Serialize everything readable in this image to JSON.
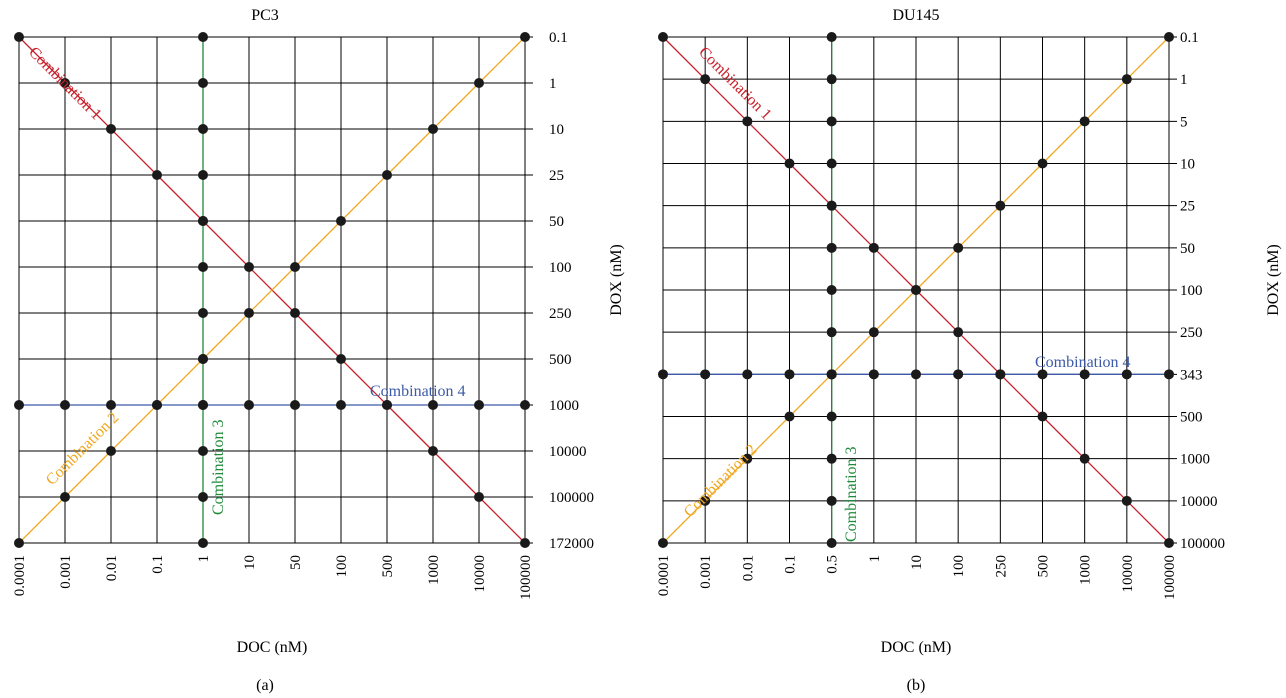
{
  "colors": {
    "grid": "#000000",
    "point": "#1a1a1a",
    "combination_1": "#c8202a",
    "combination_2": "#f0a820",
    "combination_3": "#1e8a3a",
    "combination_4": "#3d5aa8"
  },
  "chart_data": [
    {
      "type": "scatter",
      "title": "PC3",
      "panel_label": "(a)",
      "xlabel": "DOC (nM)",
      "ylabel": "DOX (nM)",
      "x_categories": [
        "0.0001",
        "0.001",
        "0.01",
        "0.1",
        "1",
        "10",
        "50",
        "100",
        "500",
        "1000",
        "10000",
        "100000"
      ],
      "y_categories": [
        "0.1",
        "1",
        "10",
        "25",
        "50",
        "100",
        "250",
        "500",
        "1000",
        "10000",
        "100000",
        "172000"
      ],
      "grid": true,
      "series": [
        {
          "name": "Combination 1",
          "points": [
            [
              "0.0001",
              "0.1"
            ],
            [
              "0.001",
              "1"
            ],
            [
              "0.01",
              "10"
            ],
            [
              "0.1",
              "25"
            ],
            [
              "1",
              "50"
            ],
            [
              "10",
              "100"
            ],
            [
              "50",
              "250"
            ],
            [
              "100",
              "500"
            ],
            [
              "500",
              "1000"
            ],
            [
              "1000",
              "10000"
            ],
            [
              "10000",
              "100000"
            ],
            [
              "100000",
              "172000"
            ]
          ]
        },
        {
          "name": "Combination 2",
          "points": [
            [
              "0.0001",
              "172000"
            ],
            [
              "0.001",
              "100000"
            ],
            [
              "0.01",
              "10000"
            ],
            [
              "0.1",
              "1000"
            ],
            [
              "1",
              "500"
            ],
            [
              "10",
              "250"
            ],
            [
              "50",
              "100"
            ],
            [
              "100",
              "50"
            ],
            [
              "500",
              "25"
            ],
            [
              "1000",
              "10"
            ],
            [
              "10000",
              "1"
            ],
            [
              "100000",
              "0.1"
            ]
          ]
        },
        {
          "name": "Combination 3",
          "points": [
            [
              "1",
              "0.1"
            ],
            [
              "1",
              "1"
            ],
            [
              "1",
              "10"
            ],
            [
              "1",
              "25"
            ],
            [
              "1",
              "50"
            ],
            [
              "1",
              "100"
            ],
            [
              "1",
              "250"
            ],
            [
              "1",
              "500"
            ],
            [
              "1",
              "1000"
            ],
            [
              "1",
              "10000"
            ],
            [
              "1",
              "100000"
            ],
            [
              "1",
              "172000"
            ]
          ]
        },
        {
          "name": "Combination 4",
          "points": [
            [
              "0.0001",
              "1000"
            ],
            [
              "0.001",
              "1000"
            ],
            [
              "0.01",
              "1000"
            ],
            [
              "0.1",
              "1000"
            ],
            [
              "1",
              "1000"
            ],
            [
              "10",
              "1000"
            ],
            [
              "50",
              "1000"
            ],
            [
              "100",
              "1000"
            ],
            [
              "500",
              "1000"
            ],
            [
              "1000",
              "1000"
            ],
            [
              "10000",
              "1000"
            ],
            [
              "100000",
              "1000"
            ]
          ]
        }
      ]
    },
    {
      "type": "scatter",
      "title": "DU145",
      "panel_label": "(b)",
      "xlabel": "DOC (nM)",
      "ylabel": "DOX (nM)",
      "x_categories": [
        "0.0001",
        "0.001",
        "0.01",
        "0.1",
        "0.5",
        "1",
        "10",
        "100",
        "250",
        "500",
        "1000",
        "10000",
        "100000"
      ],
      "y_categories": [
        "0.1",
        "1",
        "5",
        "10",
        "25",
        "50",
        "100",
        "250",
        "343",
        "500",
        "1000",
        "10000",
        "100000"
      ],
      "grid": true,
      "series": [
        {
          "name": "Combination 1",
          "points": [
            [
              "0.0001",
              "0.1"
            ],
            [
              "0.001",
              "1"
            ],
            [
              "0.01",
              "5"
            ],
            [
              "0.1",
              "10"
            ],
            [
              "0.5",
              "25"
            ],
            [
              "1",
              "50"
            ],
            [
              "10",
              "100"
            ],
            [
              "100",
              "250"
            ],
            [
              "250",
              "343"
            ],
            [
              "500",
              "500"
            ],
            [
              "1000",
              "1000"
            ],
            [
              "10000",
              "10000"
            ],
            [
              "100000",
              "100000"
            ]
          ]
        },
        {
          "name": "Combination 2",
          "points": [
            [
              "0.0001",
              "100000"
            ],
            [
              "0.001",
              "10000"
            ],
            [
              "0.01",
              "1000"
            ],
            [
              "0.1",
              "500"
            ],
            [
              "0.5",
              "343"
            ],
            [
              "1",
              "250"
            ],
            [
              "10",
              "100"
            ],
            [
              "100",
              "50"
            ],
            [
              "250",
              "25"
            ],
            [
              "500",
              "10"
            ],
            [
              "1000",
              "5"
            ],
            [
              "10000",
              "1"
            ],
            [
              "100000",
              "0.1"
            ]
          ]
        },
        {
          "name": "Combination 3",
          "points": [
            [
              "0.5",
              "0.1"
            ],
            [
              "0.5",
              "1"
            ],
            [
              "0.5",
              "5"
            ],
            [
              "0.5",
              "10"
            ],
            [
              "0.5",
              "25"
            ],
            [
              "0.5",
              "50"
            ],
            [
              "0.5",
              "100"
            ],
            [
              "0.5",
              "250"
            ],
            [
              "0.5",
              "343"
            ],
            [
              "0.5",
              "500"
            ],
            [
              "0.5",
              "1000"
            ],
            [
              "0.5",
              "10000"
            ],
            [
              "0.5",
              "100000"
            ]
          ]
        },
        {
          "name": "Combination 4",
          "points": [
            [
              "0.0001",
              "343"
            ],
            [
              "0.001",
              "343"
            ],
            [
              "0.01",
              "343"
            ],
            [
              "0.1",
              "343"
            ],
            [
              "0.5",
              "343"
            ],
            [
              "1",
              "343"
            ],
            [
              "10",
              "343"
            ],
            [
              "100",
              "343"
            ],
            [
              "250",
              "343"
            ],
            [
              "500",
              "343"
            ],
            [
              "1000",
              "343"
            ],
            [
              "10000",
              "343"
            ],
            [
              "100000",
              "343"
            ]
          ]
        }
      ]
    }
  ]
}
